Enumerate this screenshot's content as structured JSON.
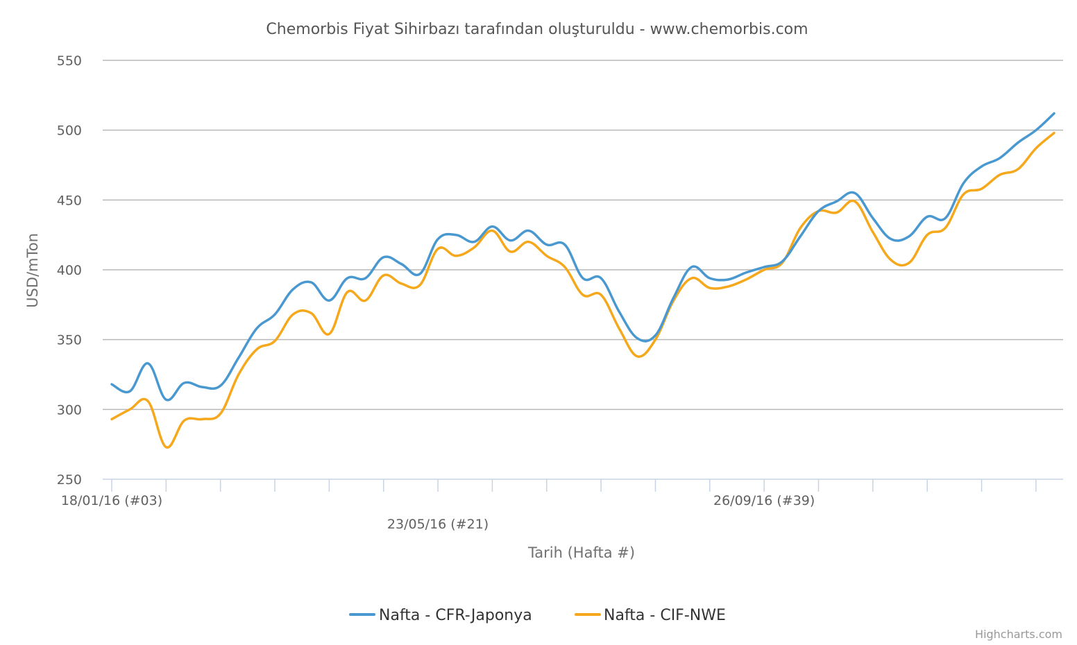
{
  "chart_data": {
    "type": "line",
    "title": "Chemorbis Fiyat Sihirbazı tarafından oluşturuldu - www.chemorbis.com",
    "xlabel": "Tarih (Hafta #)",
    "ylabel": "USD/mTon",
    "ylim": [
      250,
      550
    ],
    "yticks": [
      250,
      300,
      350,
      400,
      450,
      500,
      550
    ],
    "x_tick_labels": [
      {
        "index": 0,
        "label": "18/01/16 (#03)"
      },
      {
        "index": 18,
        "label": "23/05/16 (#21)"
      },
      {
        "index": 36,
        "label": "26/09/16 (#39)"
      }
    ],
    "grid": true,
    "legend_position": "bottom-center",
    "series": [
      {
        "name": "Nafta - CFR-Japonya",
        "color": "#4a98d0",
        "values": [
          318,
          313,
          333,
          307,
          319,
          316,
          317,
          337,
          358,
          368,
          386,
          391,
          378,
          394,
          394,
          409,
          404,
          397,
          422,
          425,
          420,
          431,
          421,
          428,
          418,
          418,
          394,
          394,
          370,
          351,
          353,
          380,
          402,
          394,
          393,
          398,
          402,
          406,
          424,
          442,
          449,
          455,
          437,
          422,
          424,
          438,
          437,
          462,
          474,
          480,
          491,
          500,
          512
        ]
      },
      {
        "name": "Nafta - CIF-NWE",
        "color": "#f5a81c",
        "values": [
          293,
          300,
          306,
          273,
          292,
          293,
          297,
          325,
          343,
          349,
          368,
          369,
          354,
          384,
          378,
          396,
          390,
          389,
          415,
          410,
          416,
          428,
          413,
          420,
          410,
          402,
          382,
          382,
          358,
          338,
          350,
          378,
          394,
          387,
          388,
          393,
          400,
          405,
          430,
          442,
          441,
          449,
          427,
          407,
          405,
          425,
          430,
          454,
          458,
          468,
          472,
          487,
          498
        ]
      }
    ]
  },
  "credits": "Highcharts.com"
}
